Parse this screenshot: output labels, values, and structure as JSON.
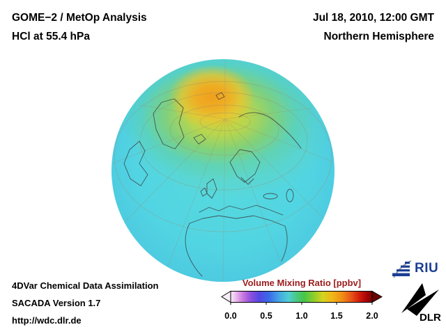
{
  "header": {
    "title": "GOME−2 / MetOp Analysis",
    "subtitle": "HCl at 55.4 hPa",
    "datetime": "Jul 18, 2010, 12:00 GMT",
    "region": "Northern Hemisphere"
  },
  "map": {
    "projection": "orthographic-northern-hemisphere",
    "field": "HCl volume mixing ratio at 55.4 hPa",
    "low_color": "#4fd2e2",
    "mid_color": "#8ccd3c",
    "high_color": "#f0a01c"
  },
  "footer": {
    "line1": "4DVar Chemical Data Assimilation",
    "line2": "SACADA Version 1.7",
    "line3": "http://wdc.dlr.de"
  },
  "colorbar": {
    "title": "Volume Mixing Ratio [ppbv]",
    "title_color": "#9b1c1c",
    "min": 0.0,
    "max": 2.0,
    "ticks": [
      "0.0",
      "0.5",
      "1.0",
      "1.5",
      "2.0"
    ],
    "left_arrow_color": "#f8eff8",
    "right_arrow_color": "#6b0000",
    "gradient": [
      {
        "o": 0,
        "c": "#f8e9f8"
      },
      {
        "o": 3,
        "c": "#eec4ee"
      },
      {
        "o": 8,
        "c": "#cf7fe0"
      },
      {
        "o": 14,
        "c": "#9050dc"
      },
      {
        "o": 20,
        "c": "#5548e4"
      },
      {
        "o": 27,
        "c": "#3a6ae8"
      },
      {
        "o": 34,
        "c": "#44a4e6"
      },
      {
        "o": 41,
        "c": "#4ecfd2"
      },
      {
        "o": 47,
        "c": "#49c87c"
      },
      {
        "o": 52,
        "c": "#47c548"
      },
      {
        "o": 58,
        "c": "#85cd2e"
      },
      {
        "o": 65,
        "c": "#d4d41e"
      },
      {
        "o": 72,
        "c": "#f0b618"
      },
      {
        "o": 79,
        "c": "#f08c16"
      },
      {
        "o": 85,
        "c": "#e85618"
      },
      {
        "o": 91,
        "c": "#d21c0c"
      },
      {
        "o": 96,
        "c": "#a80404"
      },
      {
        "o": 100,
        "c": "#7a0000"
      }
    ]
  },
  "logos": {
    "riu": {
      "text": "RIU",
      "color": "#1c3f94"
    },
    "dlr": {
      "text": "DLR"
    }
  }
}
